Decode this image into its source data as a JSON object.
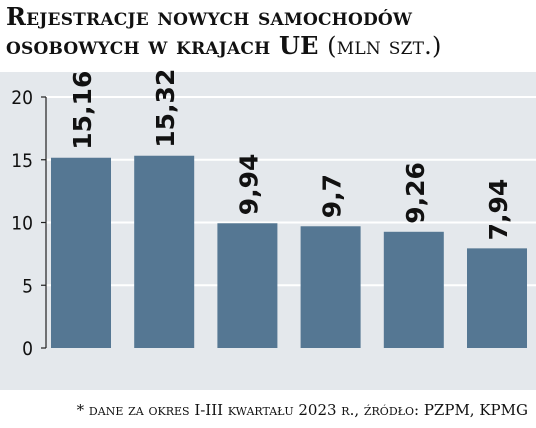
{
  "header": {
    "title": "Rejestracje nowych samochodów osobowych w krajach UE",
    "unit": "(mln szt.)"
  },
  "footnote": "* dane za okres I-III kwartału 2023 r., źródło: PZPM, KPMG",
  "colors": {
    "bar": "#557793",
    "panel": "#e4e8ec",
    "grid": "#ffffff",
    "axis": "#222222",
    "text": "#111111"
  },
  "chart_data": {
    "type": "bar",
    "categories": [
      "",
      "",
      "",
      "",
      "",
      ""
    ],
    "values": [
      15.16,
      15.32,
      9.94,
      9.7,
      9.26,
      7.94
    ],
    "value_labels": [
      "15,16",
      "15,32",
      "9,94",
      "9,7",
      "9,26",
      "7,94"
    ],
    "ylim": [
      0,
      20
    ],
    "yticks": [
      0,
      5,
      10,
      15,
      20
    ],
    "grid": true,
    "legend": "none"
  }
}
